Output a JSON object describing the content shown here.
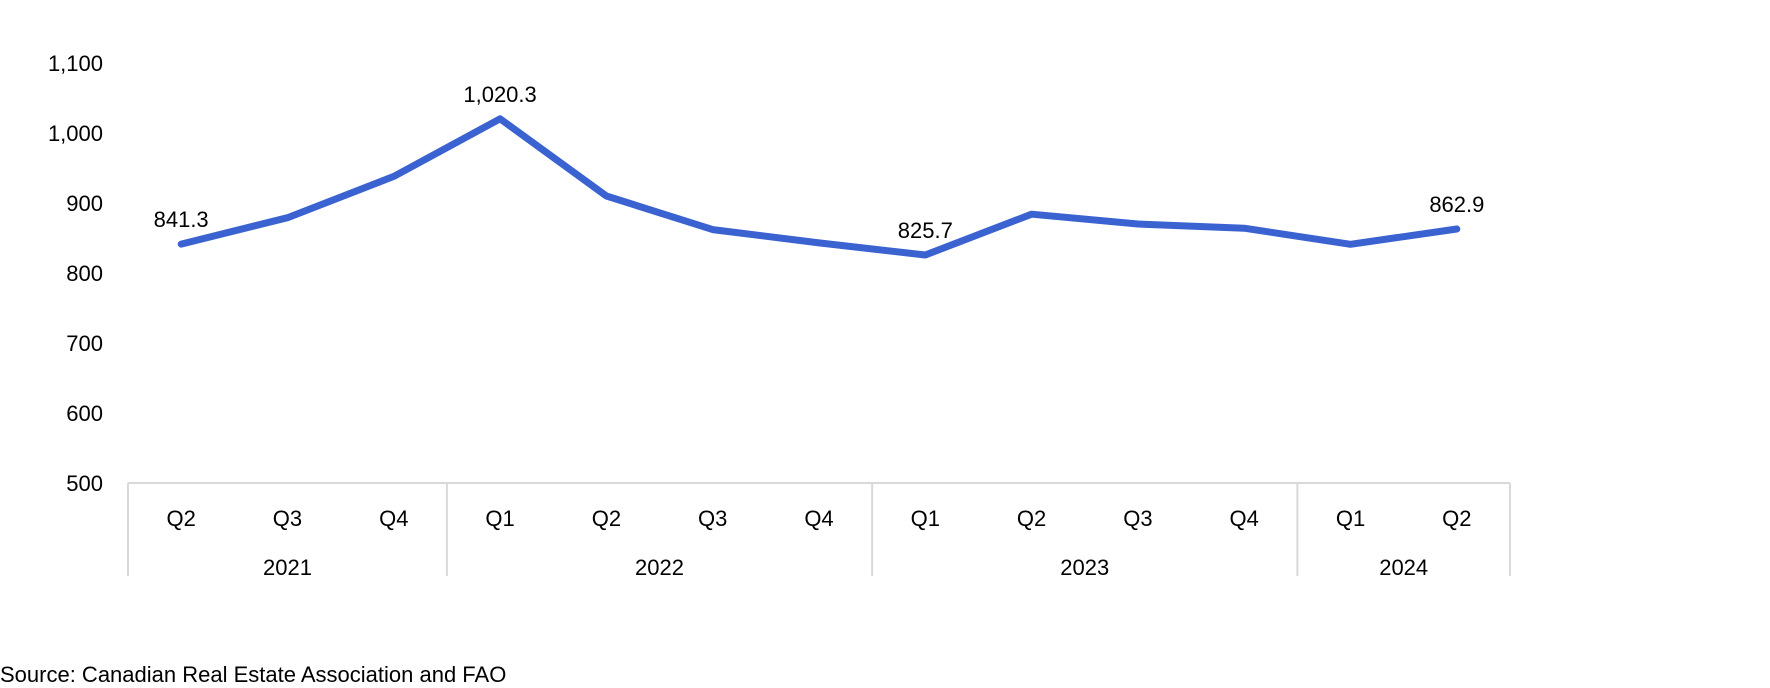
{
  "chart_data": {
    "type": "line",
    "title": "",
    "xlabel": "",
    "ylabel": "",
    "ylim": [
      500,
      1100
    ],
    "yticks": [
      500,
      600,
      700,
      800,
      900,
      1000,
      1100
    ],
    "ytick_labels": [
      "500",
      "600",
      "700",
      "800",
      "900",
      "1,000",
      "1,100"
    ],
    "grid": false,
    "legend": "none",
    "categories": [
      "Q2",
      "Q3",
      "Q4",
      "Q1",
      "Q2",
      "Q3",
      "Q4",
      "Q1",
      "Q2",
      "Q3",
      "Q4",
      "Q1",
      "Q2"
    ],
    "year_groups": [
      {
        "label": "2021",
        "count": 3
      },
      {
        "label": "2022",
        "count": 4
      },
      {
        "label": "2023",
        "count": 4
      },
      {
        "label": "2024",
        "count": 2
      }
    ],
    "series": [
      {
        "values": [
          841.3,
          879,
          938,
          1020.3,
          910,
          862,
          843,
          825.7,
          884,
          870,
          864,
          841,
          862.9
        ],
        "color": "#3a62d0"
      }
    ],
    "data_labels": [
      {
        "index": 0,
        "text": "841.3"
      },
      {
        "index": 3,
        "text": "1,020.3"
      },
      {
        "index": 7,
        "text": "825.7"
      },
      {
        "index": 12,
        "text": "862.9"
      }
    ],
    "axis_color": "#d9d9d9"
  },
  "source_text": "Source: Canadian Real Estate Association and FAO"
}
